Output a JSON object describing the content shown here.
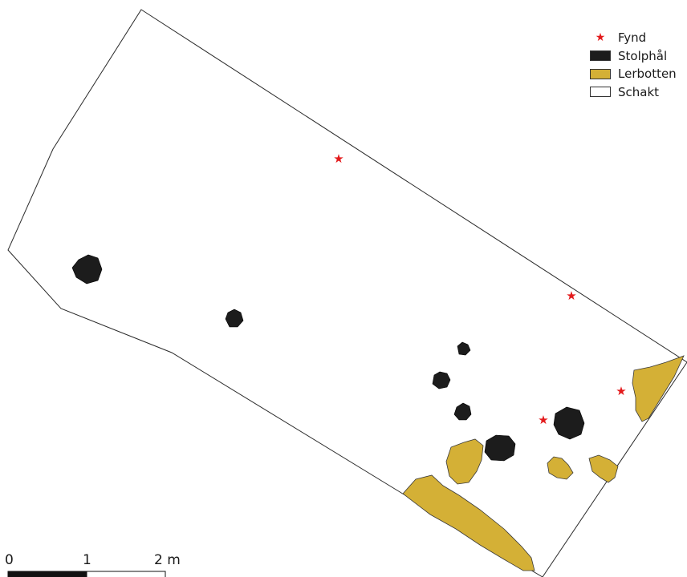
{
  "legend": {
    "items": [
      {
        "label": "Fynd",
        "symbol": "star",
        "color": "#e31a1c"
      },
      {
        "label": "Stolphål",
        "symbol": "fill",
        "color": "#1c1c1c"
      },
      {
        "label": "Lerbotten",
        "symbol": "fill",
        "color": "#d4b036"
      },
      {
        "label": "Schakt",
        "symbol": "outline",
        "color": "#ffffff"
      }
    ]
  },
  "scale_bar": {
    "labels": [
      "0",
      "1",
      "2 m"
    ],
    "colors": [
      "#111111",
      "#ffffff"
    ]
  },
  "colors": {
    "schakt_fill": "#ffffff",
    "outline": "#2a2a2a",
    "stolphal": "#1c1c1c",
    "lerbotten": "#d4b036",
    "fynd": "#e31a1c"
  }
}
